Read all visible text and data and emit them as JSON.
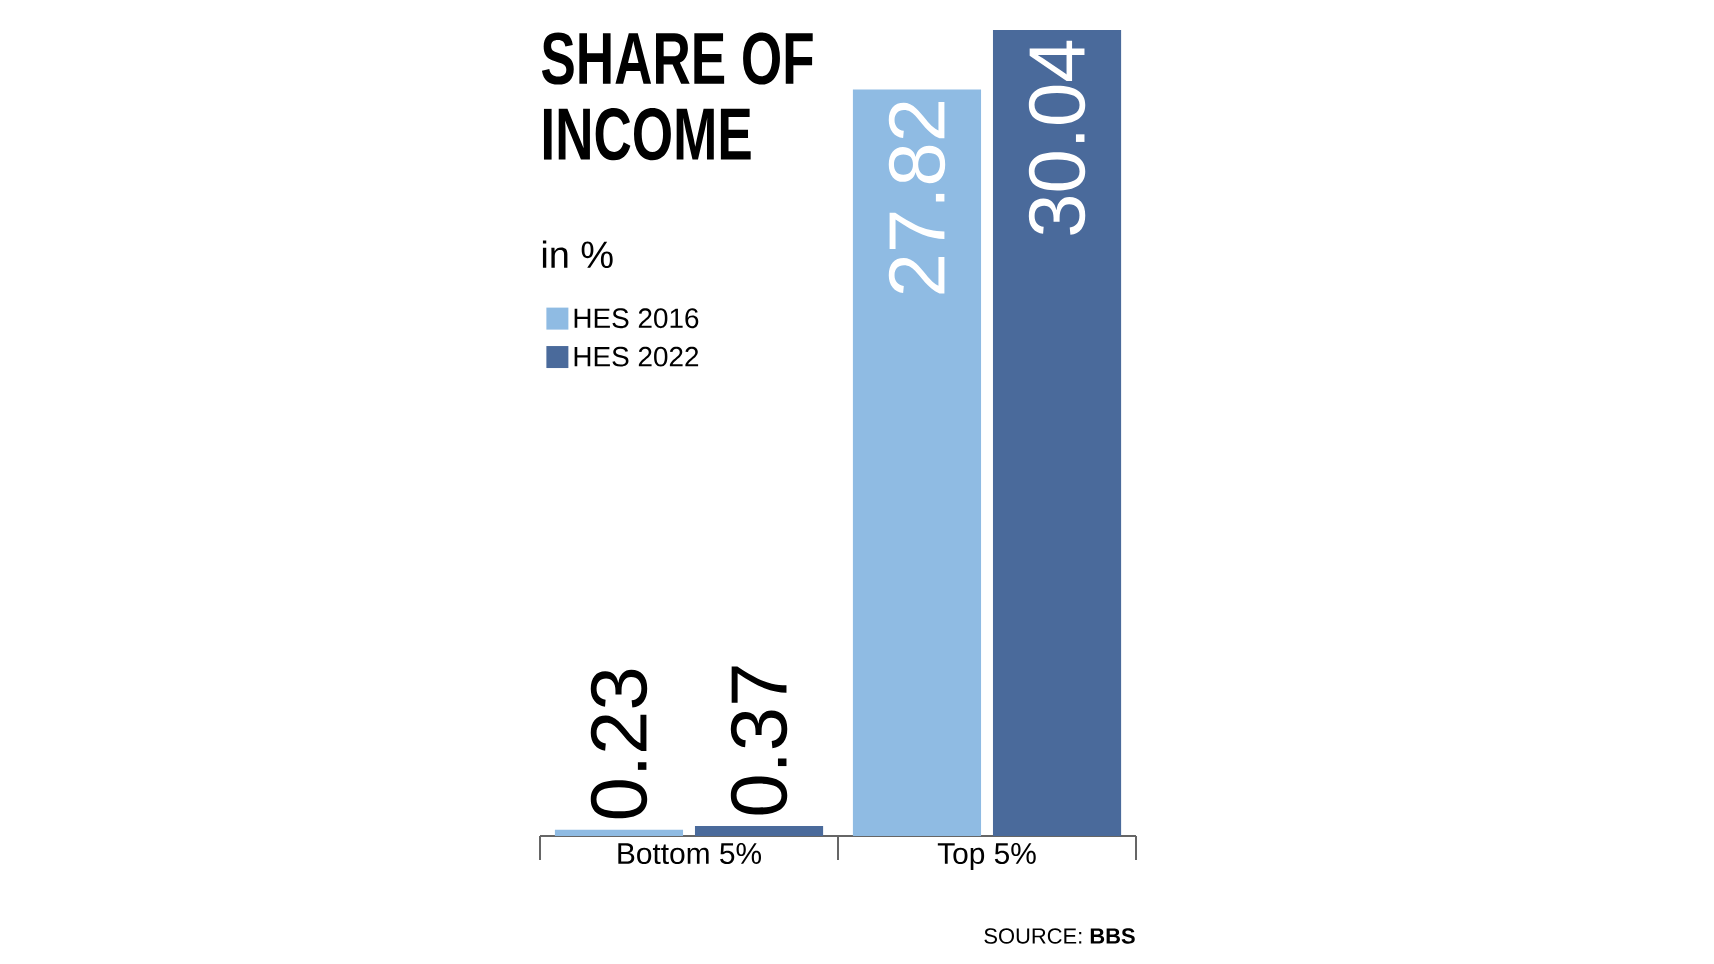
{
  "chart_data": {
    "type": "bar",
    "title": "SHARE OF INCOME",
    "subtitle": "in %",
    "categories": [
      "Bottom 5%",
      "Top 5%"
    ],
    "series": [
      {
        "name": "HES 2016",
        "color": "#8fbbe3",
        "values": [
          0.23,
          27.82
        ]
      },
      {
        "name": "HES 2022",
        "color": "#4a6a9b",
        "values": [
          0.37,
          30.04
        ]
      }
    ],
    "data_labels": true,
    "legend": "top left",
    "annotations": [
      "SOURCE: **BBS**"
    ]
  }
}
